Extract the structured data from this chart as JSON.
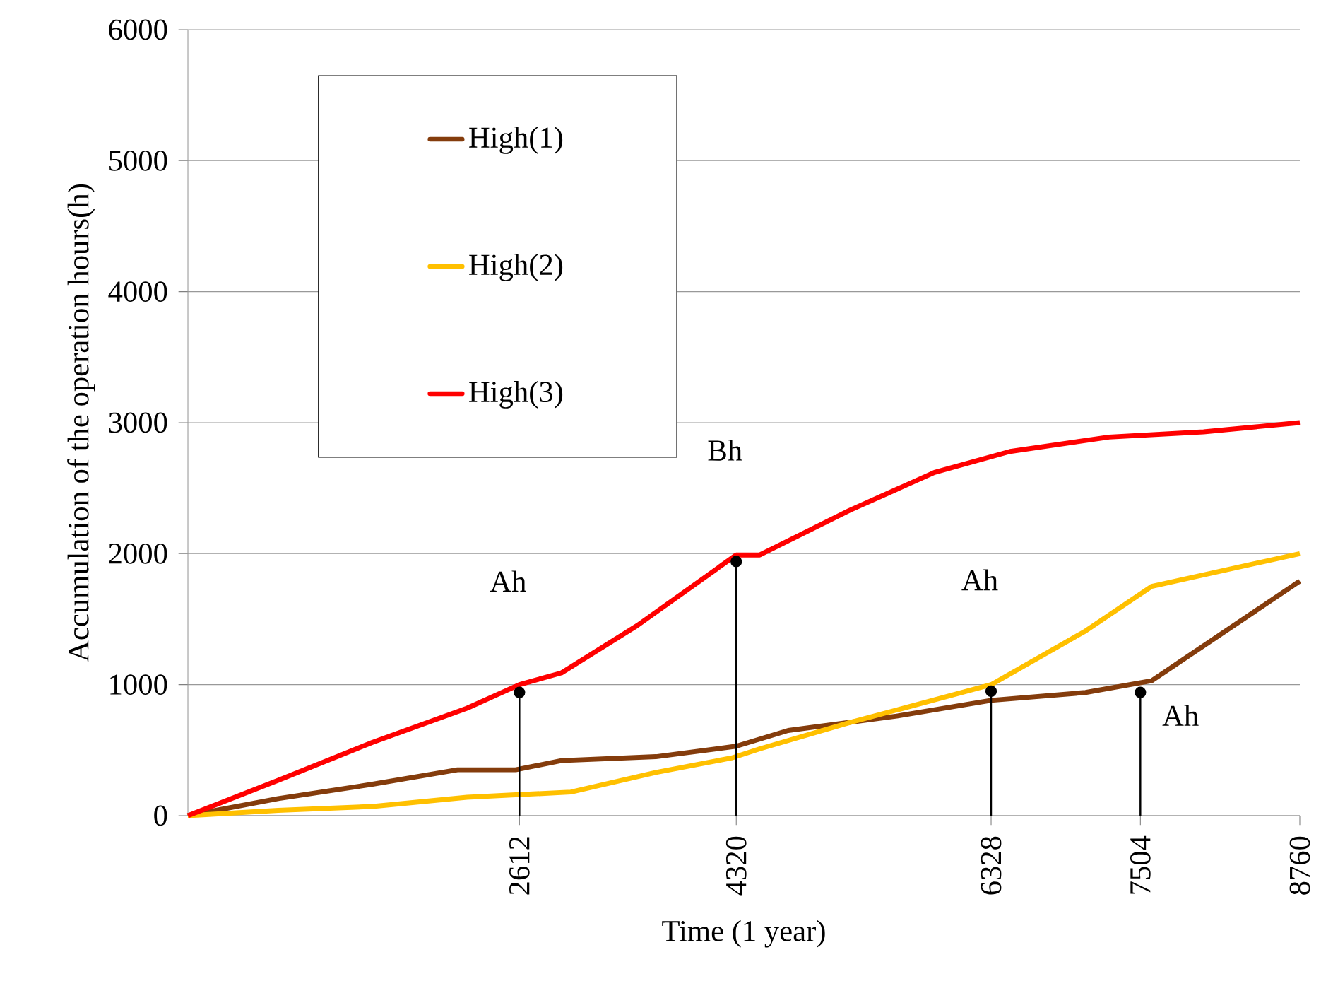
{
  "chart_data": {
    "type": "line",
    "xlabel": "Time (1 year)",
    "ylabel": "Accumulation of the operation hours(h)",
    "xlim": [
      0,
      8760
    ],
    "ylim": [
      0,
      6000
    ],
    "xticks": [
      2612,
      4320,
      6328,
      7504,
      8760
    ],
    "yticks": [
      0,
      1000,
      2000,
      3000,
      4000,
      5000,
      6000
    ],
    "grid": "y",
    "legend": "top left",
    "line_style": "solid",
    "marker": "none",
    "series": [
      {
        "name": "High(1)",
        "color": "#843c0c",
        "x": [
          0,
          711,
          1455,
          2124,
          2582,
          2943,
          3687,
          4320,
          4729,
          5584,
          6328,
          7072,
          7593,
          8760
        ],
        "values": [
          0,
          130,
          240,
          350,
          350,
          420,
          450,
          530,
          650,
          760,
          880,
          940,
          1030,
          1790
        ]
      },
      {
        "name": "High(2)",
        "color": "#ffc000",
        "x": [
          0,
          711,
          1455,
          2199,
          3017,
          3687,
          4282,
          4505,
          5212,
          6328,
          7072,
          7593,
          8760
        ],
        "values": [
          0,
          40,
          70,
          140,
          180,
          330,
          440,
          510,
          710,
          1000,
          1410,
          1750,
          2000
        ]
      },
      {
        "name": "High(3)",
        "color": "#ff0000",
        "x": [
          0,
          711,
          1455,
          2199,
          2612,
          2943,
          3538,
          4320,
          4505,
          5212,
          5882,
          6477,
          7258,
          8002,
          8760
        ],
        "values": [
          0,
          270,
          560,
          820,
          1000,
          1090,
          1450,
          1990,
          1990,
          2330,
          2620,
          2780,
          2890,
          2930,
          3000
        ]
      },
      {
        "type": "lollipop",
        "color": "#000000",
        "marker": "circle",
        "x": [
          2612,
          4320,
          6328,
          7504
        ],
        "values": [
          940,
          1940,
          950,
          940
        ]
      }
    ],
    "annotations": [
      "Ah",
      "Bh",
      "Ah",
      "Ah"
    ]
  }
}
